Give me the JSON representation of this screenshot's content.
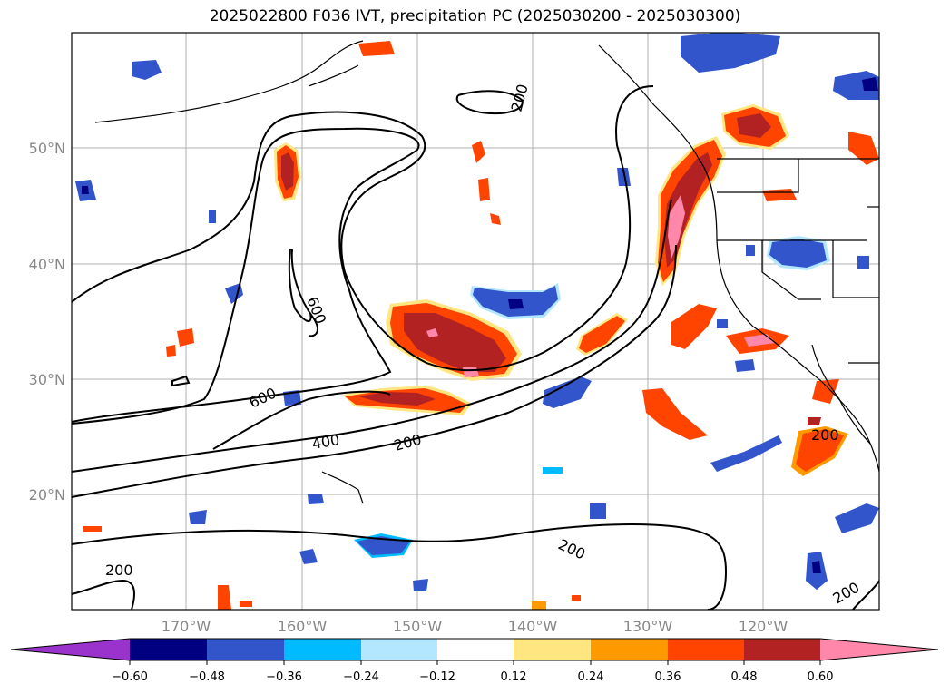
{
  "title": "2025022800 F036 IVT, precipitation PC (2025030200 - 2025030300)",
  "map": {
    "lon_labels": [
      "170°W",
      "160°W",
      "150°W",
      "140°W",
      "130°W",
      "120°W"
    ],
    "lat_labels": [
      "50°N",
      "40°N",
      "30°N",
      "20°N"
    ],
    "contour_labels": [
      "200",
      "600",
      "600",
      "400",
      "200",
      "200",
      "200",
      "200",
      "200"
    ],
    "colors": {
      "neg_extreme": "#9933cc",
      "neg_060": "#000080",
      "neg_048": "#3355cc",
      "neg_036": "#00bbff",
      "neg_024": "#b3e6ff",
      "pos_012": "#ffe680",
      "pos_024": "#ff9900",
      "pos_036": "#ff4400",
      "pos_048": "#b22222",
      "pos_extreme": "#ff88aa"
    }
  },
  "colorbar": {
    "ticks": [
      "−0.60",
      "−0.48",
      "−0.36",
      "−0.24",
      "−0.12",
      "0.12",
      "0.24",
      "0.36",
      "0.48",
      "0.60"
    ],
    "colors": [
      "#9933cc",
      "#000080",
      "#3355cc",
      "#3355cc",
      "#00bbff",
      "#b3e6ff",
      "#ffffff",
      "#ffe680",
      "#ff9900",
      "#ff4400",
      "#b22222",
      "#ff88aa"
    ]
  }
}
